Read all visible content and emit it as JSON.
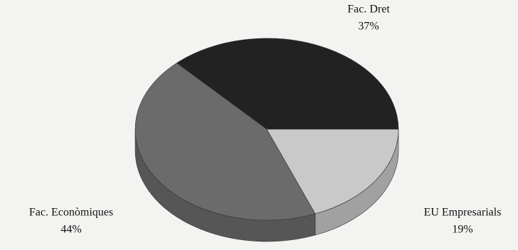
{
  "chart_data": {
    "type": "pie",
    "categories": [
      "Fac. Dret",
      "Fac. Econòmiques",
      "EU Empresarials"
    ],
    "values": [
      37,
      44,
      19
    ],
    "value_labels": [
      "37%",
      "44%",
      "19%"
    ],
    "colors": [
      "#222222",
      "#6b6b6b",
      "#c9c9c9"
    ]
  }
}
